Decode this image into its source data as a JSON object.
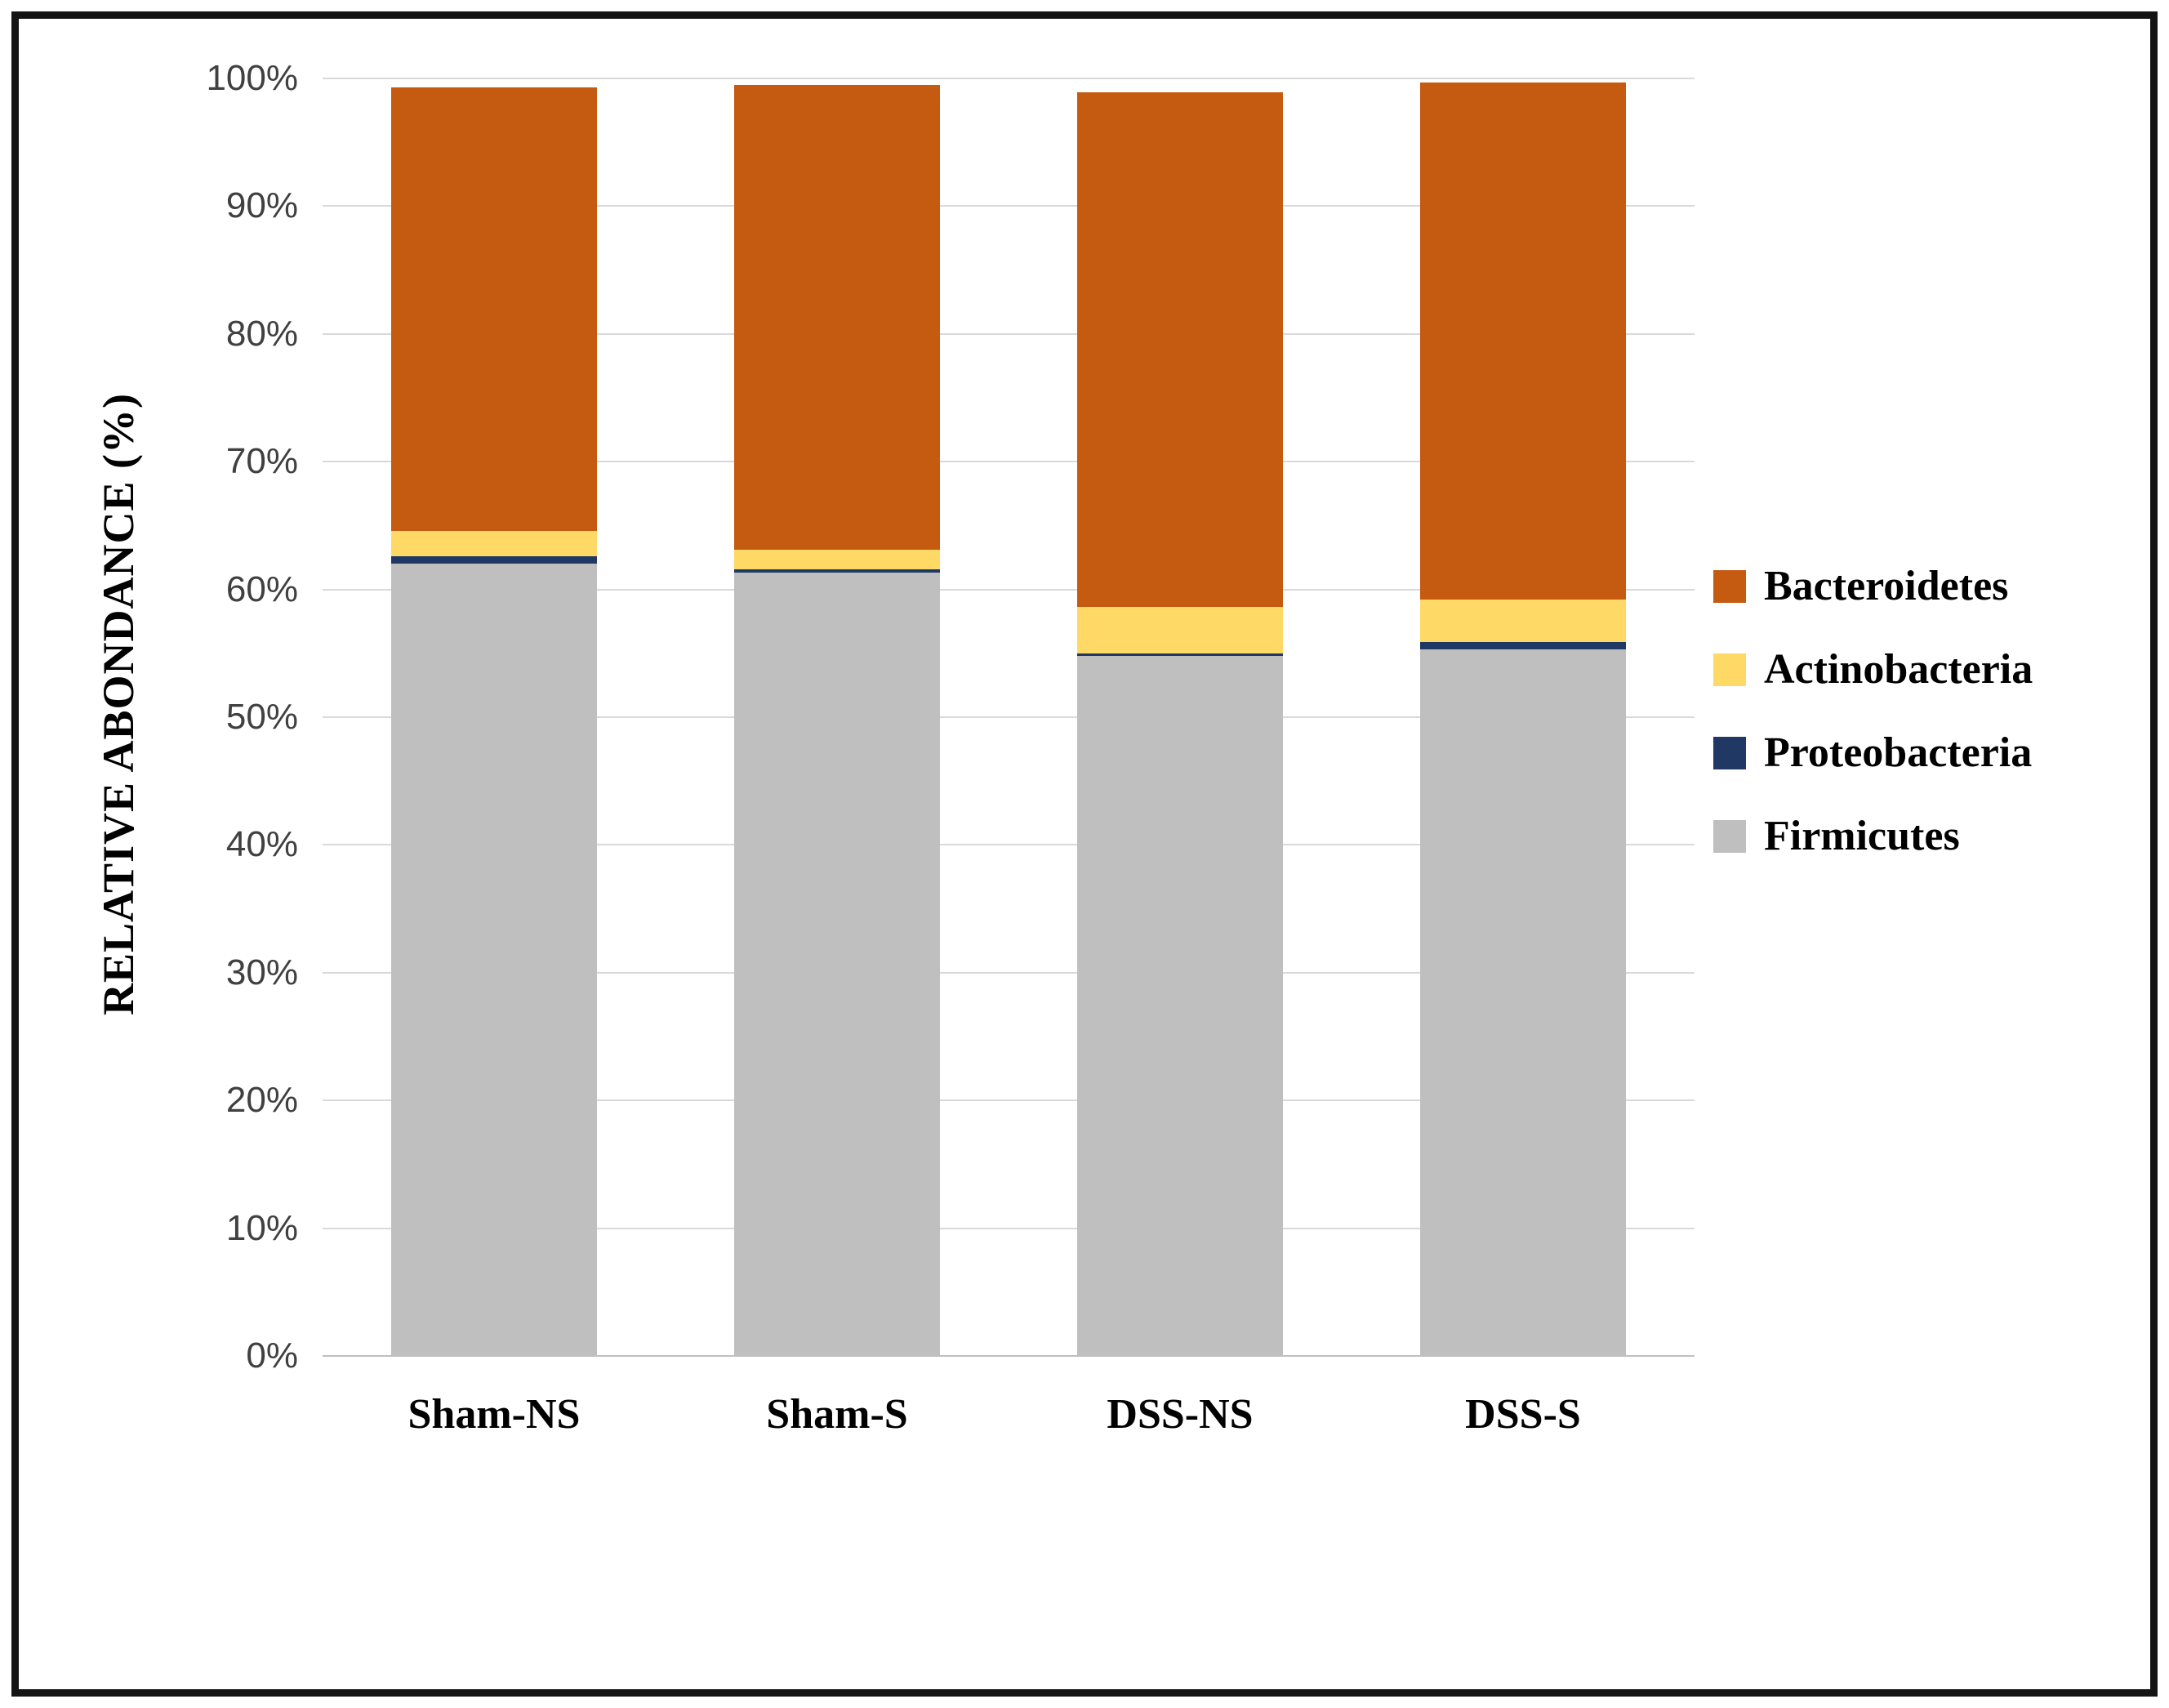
{
  "chart_data": {
    "type": "bar",
    "stacked": true,
    "title": "",
    "xlabel": "",
    "ylabel": "RELATIVE ABONDANCE (%)",
    "ylim": [
      0,
      100
    ],
    "y_ticks": [
      "0%",
      "10%",
      "20%",
      "30%",
      "40%",
      "50%",
      "60%",
      "70%",
      "80%",
      "90%",
      "100%"
    ],
    "grid": true,
    "categories": [
      "Sham-NS",
      "Sham-S",
      "DSS-NS",
      "DSS-S"
    ],
    "series": [
      {
        "name": "Firmicutes",
        "color": "#bfbfbf",
        "values": [
          62.0,
          61.3,
          54.8,
          55.3
        ]
      },
      {
        "name": "Proteobacteria",
        "color": "#1f3864",
        "values": [
          0.6,
          0.3,
          0.2,
          0.6
        ]
      },
      {
        "name": "Actinobacteria",
        "color": "#ffd966",
        "values": [
          2.0,
          1.5,
          3.6,
          3.3
        ]
      },
      {
        "name": "Bacteroidetes",
        "color": "#c55a11",
        "values": [
          34.7,
          36.4,
          40.3,
          40.5
        ]
      }
    ],
    "legend": {
      "position": "right",
      "order": [
        "Bacteroidetes",
        "Actinobacteria",
        "Proteobacteria",
        "Firmicutes"
      ]
    }
  }
}
